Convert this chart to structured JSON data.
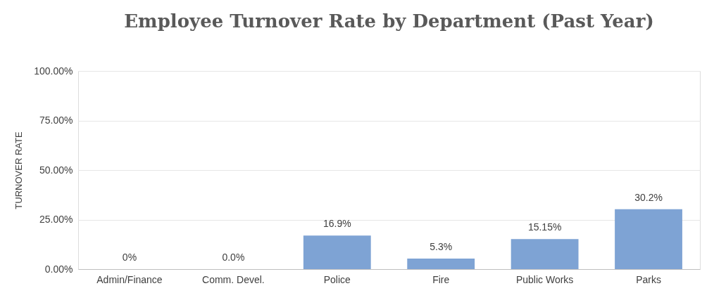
{
  "chart_data": {
    "type": "bar",
    "title": "Employee Turnover Rate by Department (Past Year)",
    "ylabel": "TURNOVER RATE",
    "categories": [
      "Admin/Finance",
      "Comm. Devel.",
      "Police",
      "Fire",
      "Public Works",
      "Parks"
    ],
    "values": [
      0,
      0,
      16.9,
      5.3,
      15.15,
      30.2
    ],
    "value_labels": [
      "0%",
      "0.0%",
      "16.9%",
      "5.3%",
      "15.15%",
      "30.2%"
    ],
    "color": "#7ea3d4",
    "ylim": [
      0,
      100
    ],
    "yticks": [
      {
        "value": 0,
        "label": "0.00%"
      },
      {
        "value": 25,
        "label": "25.00%"
      },
      {
        "value": 50,
        "label": "50.00%"
      },
      {
        "value": 75,
        "label": "75.00%"
      },
      {
        "value": 100,
        "label": "100.00%"
      }
    ],
    "grid": "y"
  }
}
